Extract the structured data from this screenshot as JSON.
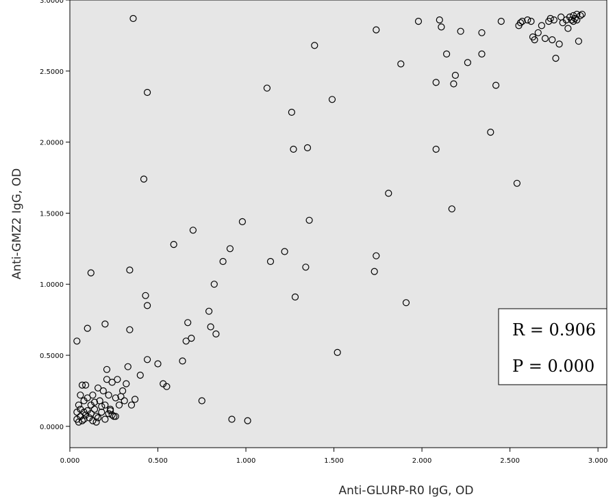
{
  "chart_data": {
    "type": "scatter",
    "xlabel": "Anti-GLURP-R0 IgG, OD",
    "ylabel": "Anti-GMZ2 IgG, OD",
    "xlim": [
      0,
      3.05
    ],
    "ylim": [
      -0.15,
      3.0
    ],
    "x_ticks": [
      {
        "value": 0.0,
        "label": "0.000"
      },
      {
        "value": 0.5,
        "label": "0.500"
      },
      {
        "value": 1.0,
        "label": "1.000"
      },
      {
        "value": 1.5,
        "label": "1.500"
      },
      {
        "value": 2.0,
        "label": "2.000"
      },
      {
        "value": 2.5,
        "label": "2.500"
      },
      {
        "value": 3.0,
        "label": "3.000"
      }
    ],
    "y_ticks": [
      {
        "value": 0.0,
        "label": "0.0000"
      },
      {
        "value": 0.5,
        "label": "0.5000"
      },
      {
        "value": 1.0,
        "label": "1.0000"
      },
      {
        "value": 1.5,
        "label": "1.5000"
      },
      {
        "value": 2.0,
        "label": "2.0000"
      },
      {
        "value": 2.5,
        "label": "2.5000"
      },
      {
        "value": 3.0,
        "label": "3.0000"
      }
    ],
    "grid": false,
    "annotation": {
      "r_text": "R = 0.906",
      "p_text": "P = 0.000"
    },
    "points": [
      [
        0.36,
        2.87
      ],
      [
        0.44,
        2.35
      ],
      [
        0.42,
        1.74
      ],
      [
        0.12,
        1.08
      ],
      [
        0.34,
        1.1
      ],
      [
        0.43,
        0.92
      ],
      [
        0.44,
        0.85
      ],
      [
        0.04,
        0.6
      ],
      [
        0.1,
        0.69
      ],
      [
        0.2,
        0.72
      ],
      [
        0.34,
        0.68
      ],
      [
        0.59,
        1.28
      ],
      [
        0.7,
        1.38
      ],
      [
        0.67,
        0.73
      ],
      [
        0.66,
        0.6
      ],
      [
        0.69,
        0.62
      ],
      [
        0.44,
        0.47
      ],
      [
        0.5,
        0.44
      ],
      [
        0.64,
        0.46
      ],
      [
        0.79,
        0.81
      ],
      [
        0.82,
        1.0
      ],
      [
        0.87,
        1.16
      ],
      [
        0.91,
        1.25
      ],
      [
        0.98,
        1.44
      ],
      [
        0.8,
        0.7
      ],
      [
        0.83,
        0.65
      ],
      [
        0.21,
        0.4
      ],
      [
        0.33,
        0.42
      ],
      [
        0.4,
        0.36
      ],
      [
        0.37,
        0.19
      ],
      [
        0.53,
        0.3
      ],
      [
        0.55,
        0.28
      ],
      [
        0.75,
        0.18
      ],
      [
        0.92,
        0.05
      ],
      [
        1.01,
        0.04
      ],
      [
        1.12,
        2.38
      ],
      [
        1.26,
        2.21
      ],
      [
        1.39,
        2.68
      ],
      [
        1.27,
        1.95
      ],
      [
        1.35,
        1.96
      ],
      [
        1.49,
        2.3
      ],
      [
        1.14,
        1.16
      ],
      [
        1.22,
        1.23
      ],
      [
        1.36,
        1.45
      ],
      [
        1.34,
        1.12
      ],
      [
        1.28,
        0.91
      ],
      [
        1.52,
        0.52
      ],
      [
        1.74,
        2.79
      ],
      [
        1.88,
        2.55
      ],
      [
        1.98,
        2.85
      ],
      [
        2.1,
        2.86
      ],
      [
        2.11,
        2.81
      ],
      [
        2.14,
        2.62
      ],
      [
        2.08,
        2.42
      ],
      [
        2.18,
        2.41
      ],
      [
        2.19,
        2.47
      ],
      [
        2.22,
        2.78
      ],
      [
        2.26,
        2.56
      ],
      [
        2.34,
        2.77
      ],
      [
        2.34,
        2.62
      ],
      [
        2.42,
        2.4
      ],
      [
        2.39,
        2.07
      ],
      [
        2.08,
        1.95
      ],
      [
        1.81,
        1.64
      ],
      [
        2.17,
        1.53
      ],
      [
        1.74,
        1.2
      ],
      [
        1.73,
        1.09
      ],
      [
        1.91,
        0.87
      ],
      [
        2.54,
        1.71
      ],
      [
        2.45,
        2.85
      ],
      [
        2.55,
        2.82
      ],
      [
        2.56,
        2.84
      ],
      [
        2.57,
        2.85
      ],
      [
        2.6,
        2.86
      ],
      [
        2.62,
        2.85
      ],
      [
        2.63,
        2.74
      ],
      [
        2.64,
        2.72
      ],
      [
        2.66,
        2.77
      ],
      [
        2.68,
        2.82
      ],
      [
        2.7,
        2.73
      ],
      [
        2.72,
        2.85
      ],
      [
        2.73,
        2.87
      ],
      [
        2.75,
        2.86
      ],
      [
        2.74,
        2.72
      ],
      [
        2.76,
        2.59
      ],
      [
        2.78,
        2.69
      ],
      [
        2.79,
        2.88
      ],
      [
        2.8,
        2.84
      ],
      [
        2.82,
        2.86
      ],
      [
        2.83,
        2.8
      ],
      [
        2.84,
        2.88
      ],
      [
        2.85,
        2.86
      ],
      [
        2.86,
        2.89
      ],
      [
        2.87,
        2.87
      ],
      [
        2.88,
        2.9
      ],
      [
        2.89,
        2.71
      ],
      [
        2.9,
        2.89
      ],
      [
        2.91,
        2.9
      ],
      [
        2.88,
        2.86
      ],
      [
        2.86,
        2.85
      ],
      [
        0.04,
        0.05
      ],
      [
        0.05,
        0.03
      ],
      [
        0.06,
        0.07
      ],
      [
        0.07,
        0.04
      ],
      [
        0.08,
        0.1
      ],
      [
        0.05,
        0.15
      ],
      [
        0.06,
        0.22
      ],
      [
        0.07,
        0.29
      ],
      [
        0.09,
        0.29
      ],
      [
        0.1,
        0.2
      ],
      [
        0.12,
        0.15
      ],
      [
        0.13,
        0.22
      ],
      [
        0.14,
        0.12
      ],
      [
        0.15,
        0.07
      ],
      [
        0.16,
        0.27
      ],
      [
        0.17,
        0.18
      ],
      [
        0.18,
        0.1
      ],
      [
        0.19,
        0.25
      ],
      [
        0.2,
        0.15
      ],
      [
        0.21,
        0.33
      ],
      [
        0.22,
        0.22
      ],
      [
        0.23,
        0.12
      ],
      [
        0.24,
        0.31
      ],
      [
        0.25,
        0.07
      ],
      [
        0.26,
        0.2
      ],
      [
        0.27,
        0.33
      ],
      [
        0.28,
        0.15
      ],
      [
        0.3,
        0.25
      ],
      [
        0.31,
        0.18
      ],
      [
        0.32,
        0.3
      ],
      [
        0.04,
        0.1
      ],
      [
        0.06,
        0.12
      ],
      [
        0.08,
        0.05
      ],
      [
        0.09,
        0.08
      ],
      [
        0.11,
        0.06
      ],
      [
        0.12,
        0.09
      ],
      [
        0.13,
        0.04
      ],
      [
        0.15,
        0.03
      ],
      [
        0.16,
        0.06
      ],
      [
        0.18,
        0.14
      ],
      [
        0.22,
        0.09
      ],
      [
        0.24,
        0.08
      ],
      [
        0.26,
        0.07
      ],
      [
        0.08,
        0.18
      ],
      [
        0.1,
        0.11
      ],
      [
        0.14,
        0.17
      ],
      [
        0.2,
        0.05
      ],
      [
        0.23,
        0.11
      ],
      [
        0.35,
        0.15
      ],
      [
        0.29,
        0.21
      ]
    ]
  }
}
